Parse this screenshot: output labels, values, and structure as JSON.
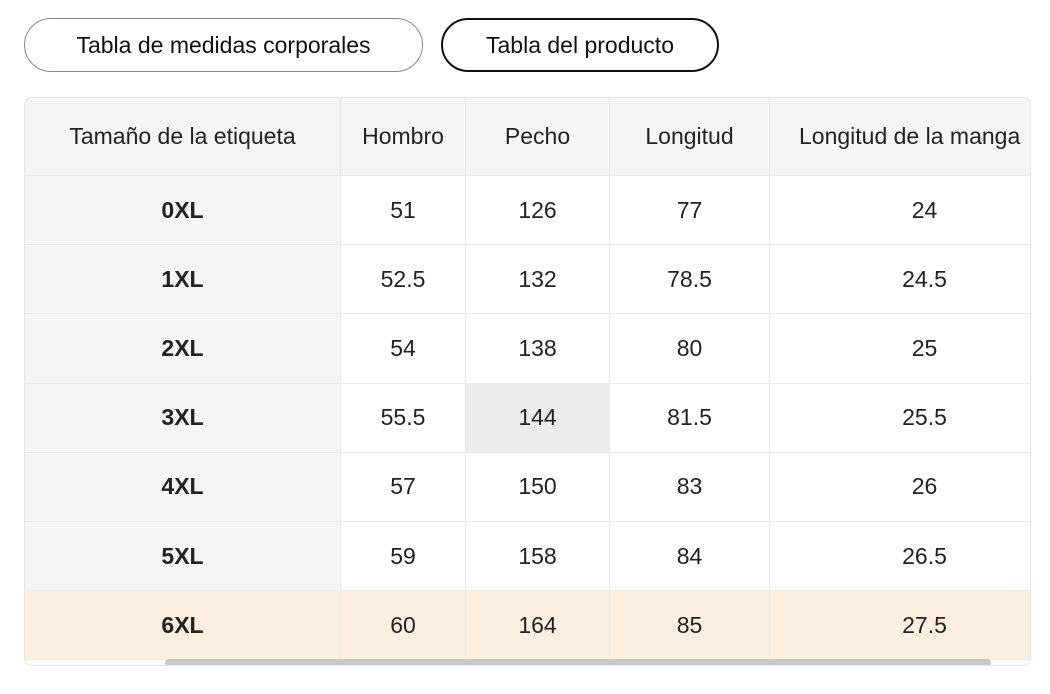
{
  "tabs": [
    "Tabla de medidas corporales",
    "Tabla del producto"
  ],
  "table": {
    "header": [
      "Tamaño de la etiqueta",
      "Hombro",
      "Pecho",
      "Longitud",
      "Longitud de la manga"
    ],
    "rows": [
      [
        "0XL",
        "51",
        "126",
        "77",
        "24"
      ],
      [
        "1XL",
        "52.5",
        "132",
        "78.5",
        "24.5"
      ],
      [
        "2XL",
        "54",
        "138",
        "80",
        "25"
      ],
      [
        "3XL",
        "55.5",
        "144",
        "81.5",
        "25.5"
      ],
      [
        "4XL",
        "57",
        "150",
        "83",
        "26"
      ],
      [
        "5XL",
        "59",
        "158",
        "84",
        "26.5"
      ],
      [
        "6XL",
        "60",
        "164",
        "85",
        "27.5"
      ]
    ]
  }
}
